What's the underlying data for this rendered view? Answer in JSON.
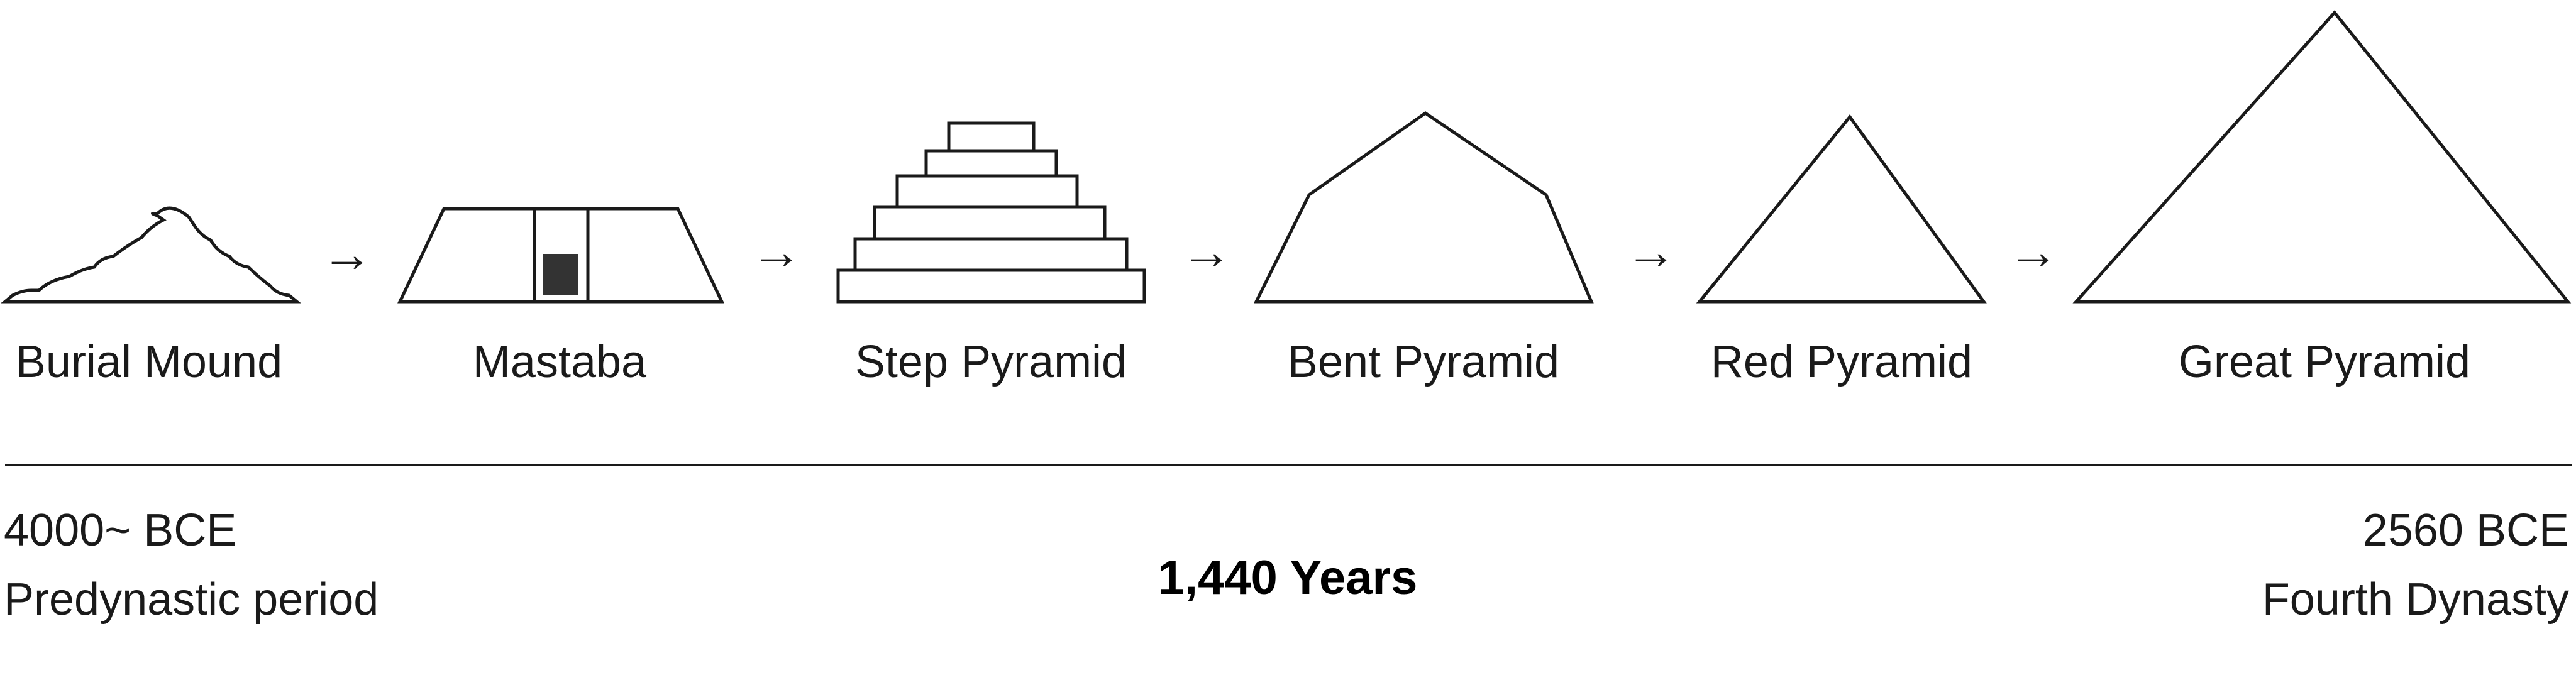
{
  "stages": [
    {
      "id": "burial-mound",
      "label": "Burial Mound"
    },
    {
      "id": "mastaba",
      "label": "Mastaba"
    },
    {
      "id": "step-pyramid",
      "label": "Step Pyramid"
    },
    {
      "id": "bent-pyramid",
      "label": "Bent Pyramid"
    },
    {
      "id": "red-pyramid",
      "label": "Red Pyramid"
    },
    {
      "id": "great-pyramid",
      "label": "Great Pyramid"
    }
  ],
  "arrow_glyph": "→",
  "timeline": {
    "start": {
      "date": "4000~ BCE",
      "period": "Predynastic period"
    },
    "end": {
      "date": "2560 BCE",
      "period": "Fourth Dynasty"
    },
    "duration": "1,440 Years"
  },
  "colors": {
    "line": "#1a1a1a",
    "door_fill": "#333333",
    "background": "#ffffff"
  }
}
